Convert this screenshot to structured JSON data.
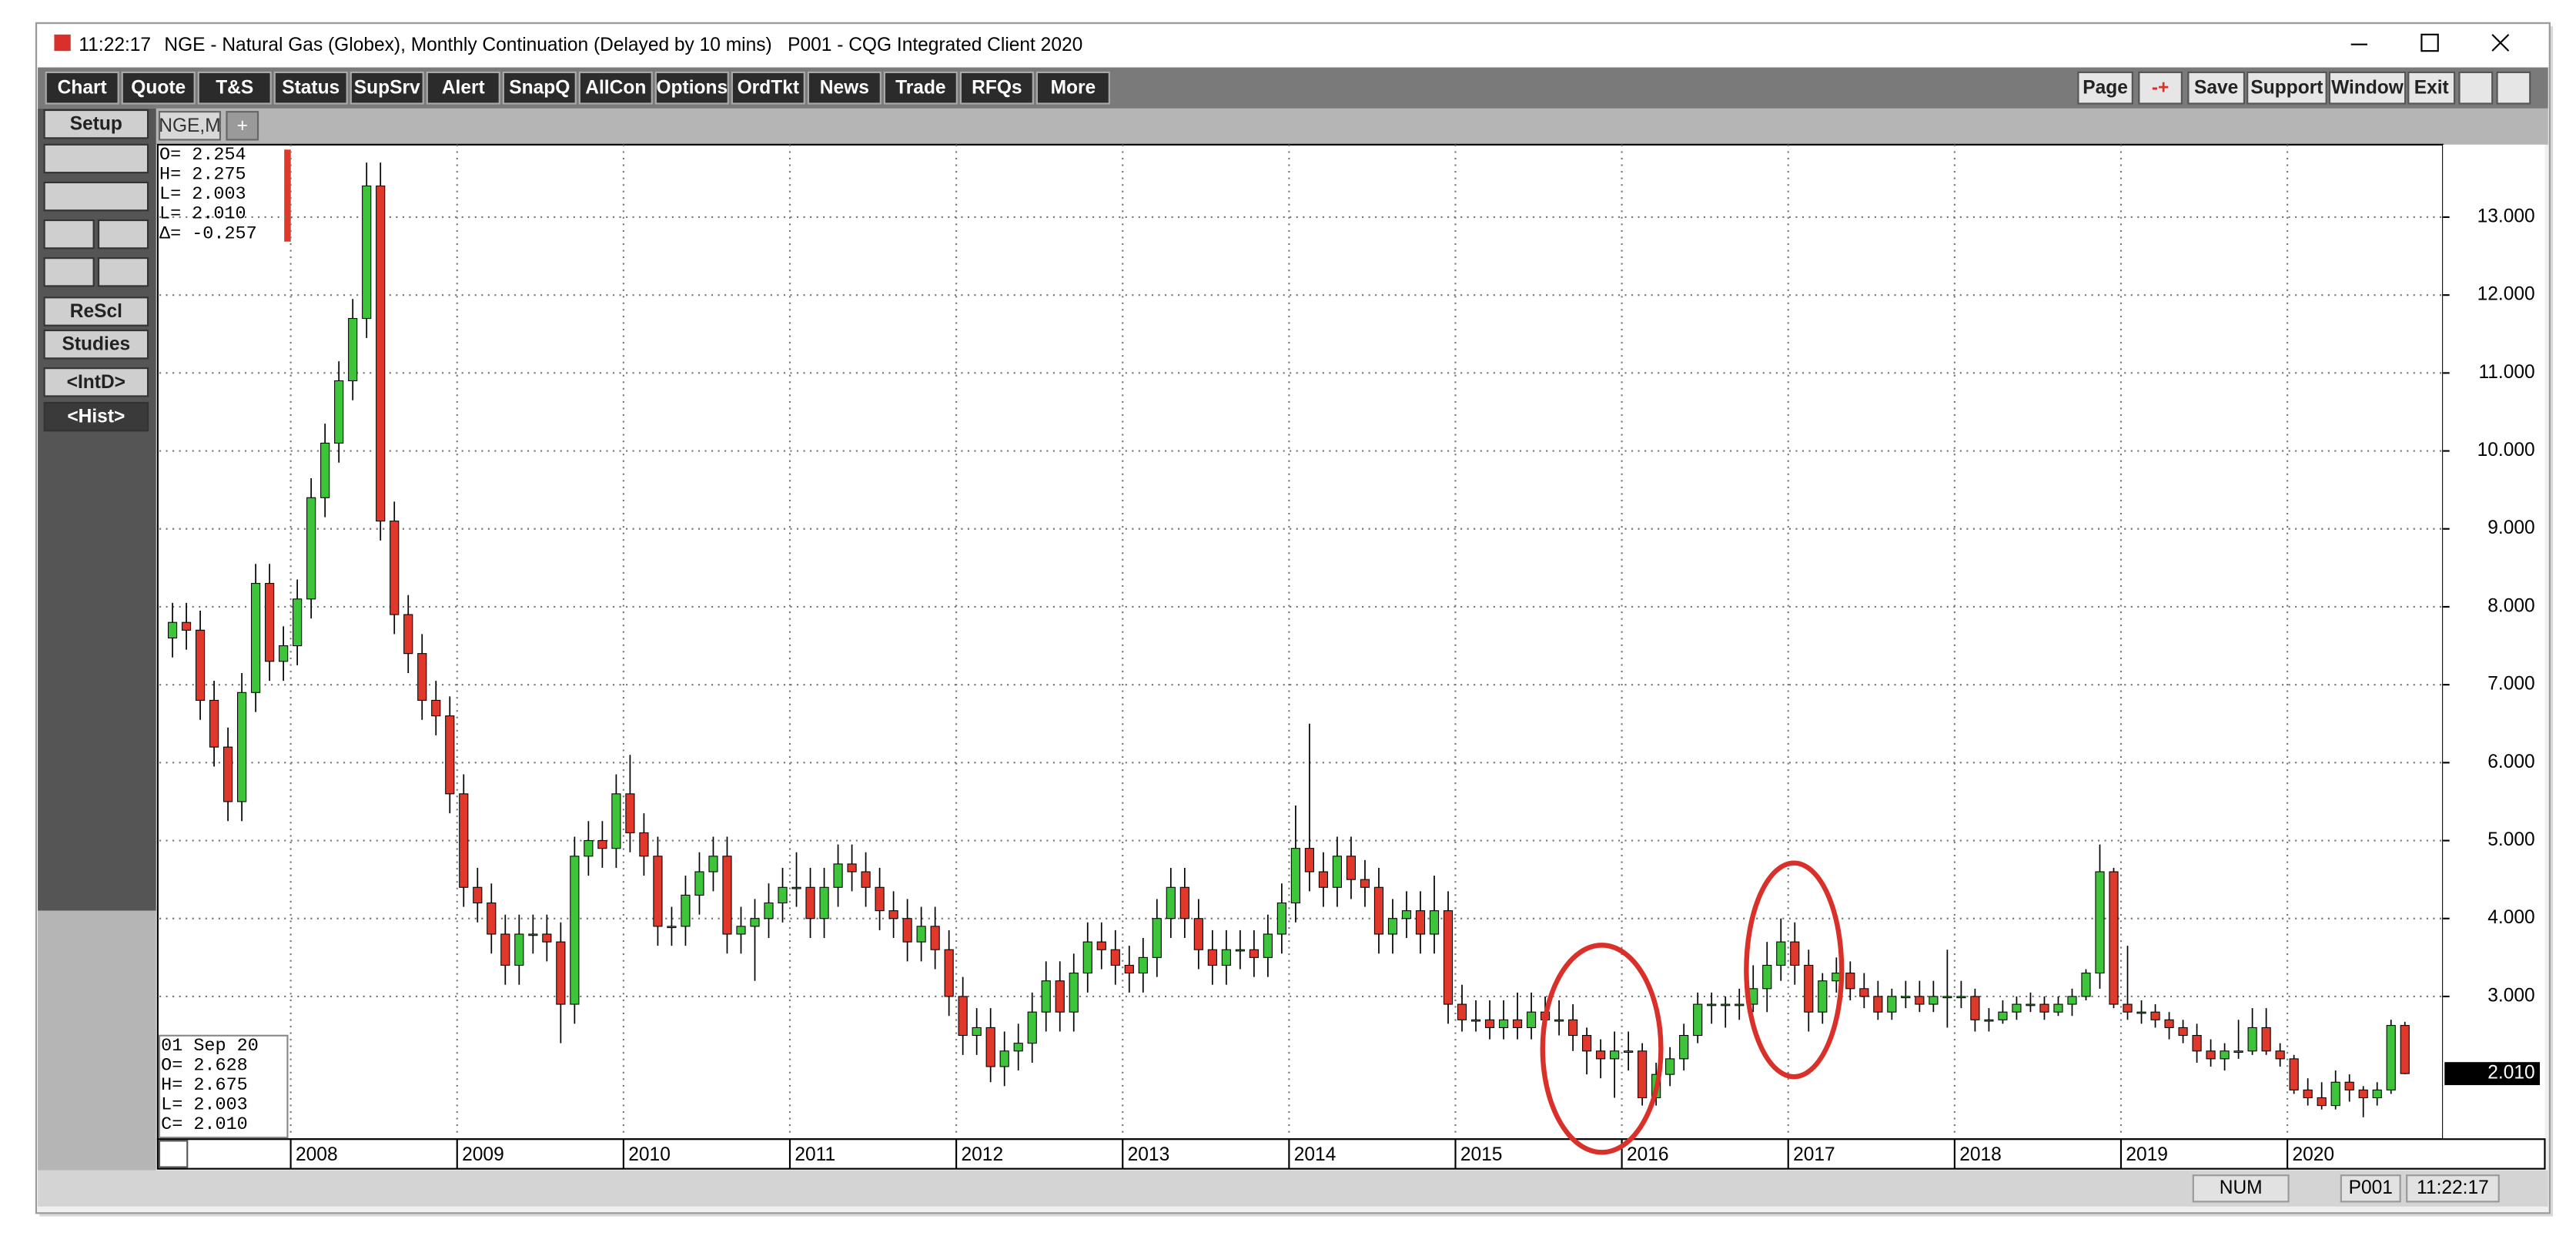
{
  "window": {
    "time": "11:22:17",
    "title": "NGE - Natural Gas (Globex), Monthly Continuation (Delayed by 10 mins)   P001 - CQG Integrated Client 2020"
  },
  "toolbar": {
    "buttons": [
      "Chart",
      "Quote",
      "T&S",
      "Status",
      "SupSrv",
      "Alert",
      "SnapQ",
      "AllCon",
      "Options",
      "OrdTkt",
      "News",
      "Trade",
      "RFQs",
      "More"
    ],
    "right_buttons": [
      "Page",
      "-+",
      "Save",
      "Support",
      "Window",
      "Exit"
    ]
  },
  "tabs": [
    "NGE,M",
    "+"
  ],
  "side_buttons": [
    "Setup",
    "ReScl",
    "Studies",
    "<IntD>",
    "<Hist>"
  ],
  "status_bar": [
    "NUM",
    "P001",
    "11:22:17"
  ],
  "chart_data": {
    "type": "candlestick",
    "x": [
      "2007-04",
      "2007-05",
      "2007-06",
      "2007-07",
      "2007-08",
      "2007-09",
      "2007-10",
      "2007-11",
      "2007-12",
      "2008-01",
      "2008-02",
      "2008-03",
      "2008-04",
      "2008-05",
      "2008-06",
      "2008-07",
      "2008-08",
      "2008-09",
      "2008-10",
      "2008-11",
      "2008-12",
      "2009-01",
      "2009-02",
      "2009-03",
      "2009-04",
      "2009-05",
      "2009-06",
      "2009-07",
      "2009-08",
      "2009-09",
      "2009-10",
      "2009-11",
      "2009-12",
      "2010-01",
      "2010-02",
      "2010-03",
      "2010-04",
      "2010-05",
      "2010-06",
      "2010-07",
      "2010-08",
      "2010-09",
      "2010-10",
      "2010-11",
      "2010-12",
      "2011-01",
      "2011-02",
      "2011-03",
      "2011-04",
      "2011-05",
      "2011-06",
      "2011-07",
      "2011-08",
      "2011-09",
      "2011-10",
      "2011-11",
      "2011-12",
      "2012-01",
      "2012-02",
      "2012-03",
      "2012-04",
      "2012-05",
      "2012-06",
      "2012-07",
      "2012-08",
      "2012-09",
      "2012-10",
      "2012-11",
      "2012-12",
      "2013-01",
      "2013-02",
      "2013-03",
      "2013-04",
      "2013-05",
      "2013-06",
      "2013-07",
      "2013-08",
      "2013-09",
      "2013-10",
      "2013-11",
      "2013-12",
      "2014-01",
      "2014-02",
      "2014-03",
      "2014-04",
      "2014-05",
      "2014-06",
      "2014-07",
      "2014-08",
      "2014-09",
      "2014-10",
      "2014-11",
      "2014-12",
      "2015-01",
      "2015-02",
      "2015-03",
      "2015-04",
      "2015-05",
      "2015-06",
      "2015-07",
      "2015-08",
      "2015-09",
      "2015-10",
      "2015-11",
      "2015-12",
      "2016-01",
      "2016-02",
      "2016-03",
      "2016-04",
      "2016-05",
      "2016-06",
      "2016-07",
      "2016-08",
      "2016-09",
      "2016-10",
      "2016-11",
      "2016-12",
      "2017-01",
      "2017-02",
      "2017-03",
      "2017-04",
      "2017-05",
      "2017-06",
      "2017-07",
      "2017-08",
      "2017-09",
      "2017-10",
      "2017-11",
      "2017-12",
      "2018-01",
      "2018-02",
      "2018-03",
      "2018-04",
      "2018-05",
      "2018-06",
      "2018-07",
      "2018-08",
      "2018-09",
      "2018-10",
      "2018-11",
      "2018-12",
      "2019-01",
      "2019-02",
      "2019-03",
      "2019-04",
      "2019-05",
      "2019-06",
      "2019-07",
      "2019-08",
      "2019-09",
      "2019-10",
      "2019-11",
      "2019-12",
      "2020-01",
      "2020-02",
      "2020-03",
      "2020-04",
      "2020-05",
      "2020-06",
      "2020-07",
      "2020-08",
      "2020-09"
    ],
    "open": [
      7.6,
      7.8,
      7.7,
      6.8,
      6.2,
      5.5,
      6.9,
      8.3,
      7.3,
      7.5,
      8.1,
      9.4,
      10.1,
      10.9,
      11.7,
      13.4,
      9.1,
      7.9,
      7.4,
      6.8,
      6.6,
      5.6,
      4.4,
      4.2,
      3.8,
      3.4,
      3.8,
      3.8,
      3.7,
      2.9,
      4.8,
      5.0,
      4.9,
      5.6,
      5.1,
      4.8,
      3.9,
      3.9,
      4.3,
      4.6,
      4.8,
      3.8,
      3.9,
      4.0,
      4.2,
      4.4,
      4.4,
      4.0,
      4.4,
      4.7,
      4.6,
      4.4,
      4.1,
      4.0,
      3.7,
      3.9,
      3.6,
      3.0,
      2.5,
      2.6,
      2.1,
      2.3,
      2.4,
      2.8,
      3.2,
      2.8,
      3.3,
      3.7,
      3.6,
      3.4,
      3.3,
      3.5,
      4.0,
      4.4,
      4.0,
      3.6,
      3.4,
      3.6,
      3.6,
      3.5,
      3.8,
      4.2,
      4.9,
      4.6,
      4.4,
      4.8,
      4.5,
      4.4,
      3.8,
      4.0,
      4.1,
      3.8,
      4.1,
      2.9,
      2.7,
      2.7,
      2.6,
      2.7,
      2.6,
      2.8,
      2.7,
      2.7,
      2.5,
      2.3,
      2.2,
      2.3,
      2.3,
      1.7,
      2.0,
      2.2,
      2.5,
      2.9,
      2.9,
      2.9,
      2.9,
      3.1,
      3.4,
      3.7,
      3.4,
      2.8,
      3.2,
      3.3,
      3.1,
      3.0,
      2.8,
      3.0,
      3.0,
      2.9,
      3.0,
      3.0,
      3.0,
      2.7,
      2.7,
      2.8,
      2.9,
      2.9,
      2.8,
      2.9,
      3.0,
      3.3,
      4.6,
      2.9,
      2.8,
      2.8,
      2.7,
      2.6,
      2.5,
      2.3,
      2.2,
      2.3,
      2.3,
      2.6,
      2.3,
      2.2,
      1.8,
      1.7,
      1.6,
      1.9,
      1.8,
      1.7,
      1.8,
      2.628
    ],
    "high": [
      8.05,
      8.05,
      7.95,
      7.05,
      6.45,
      7.15,
      8.55,
      8.55,
      7.75,
      8.35,
      9.65,
      10.35,
      11.15,
      11.95,
      13.7,
      13.7,
      9.35,
      8.15,
      7.65,
      7.05,
      6.85,
      5.85,
      4.65,
      4.45,
      4.05,
      4.05,
      4.05,
      4.05,
      3.95,
      5.05,
      5.25,
      5.25,
      5.85,
      6.1,
      5.35,
      5.05,
      4.15,
      4.55,
      4.85,
      5.05,
      5.05,
      4.15,
      4.25,
      4.45,
      4.65,
      4.85,
      4.65,
      4.65,
      4.95,
      4.95,
      4.85,
      4.65,
      4.35,
      4.25,
      4.15,
      4.15,
      3.85,
      3.25,
      2.85,
      2.85,
      2.55,
      2.65,
      3.05,
      3.45,
      3.45,
      3.55,
      3.95,
      3.95,
      3.85,
      3.65,
      3.75,
      4.25,
      4.65,
      4.65,
      4.25,
      3.85,
      3.85,
      3.85,
      3.85,
      4.05,
      4.45,
      5.45,
      6.5,
      4.85,
      5.05,
      5.05,
      4.75,
      4.65,
      4.25,
      4.35,
      4.35,
      4.55,
      4.35,
      3.15,
      2.95,
      2.95,
      2.95,
      3.05,
      3.05,
      3.0,
      2.95,
      2.9,
      2.6,
      2.45,
      2.55,
      2.55,
      2.4,
      2.15,
      2.35,
      2.65,
      3.05,
      3.05,
      3.0,
      3.1,
      3.4,
      3.7,
      4.0,
      3.95,
      3.6,
      3.3,
      3.5,
      3.45,
      3.3,
      3.2,
      3.1,
      3.2,
      3.2,
      3.2,
      3.6,
      3.2,
      3.1,
      2.85,
      2.95,
      3.0,
      3.05,
      3.0,
      3.0,
      3.1,
      3.35,
      4.95,
      4.65,
      3.65,
      2.95,
      2.9,
      2.8,
      2.7,
      2.65,
      2.45,
      2.4,
      2.7,
      2.85,
      2.85,
      2.4,
      2.25,
      1.95,
      1.9,
      2.05,
      2.0,
      1.85,
      1.9,
      2.7,
      2.675
    ],
    "low": [
      7.35,
      7.45,
      6.55,
      5.95,
      5.25,
      5.25,
      6.65,
      7.05,
      7.05,
      7.25,
      7.85,
      9.15,
      9.85,
      10.65,
      11.45,
      8.85,
      7.65,
      7.15,
      6.55,
      6.35,
      5.35,
      4.15,
      3.95,
      3.55,
      3.15,
      3.15,
      3.55,
      3.45,
      2.4,
      2.65,
      4.55,
      4.65,
      4.65,
      4.85,
      4.55,
      3.65,
      3.65,
      3.65,
      4.05,
      4.35,
      3.55,
      3.55,
      3.2,
      3.75,
      3.95,
      4.15,
      3.75,
      3.75,
      4.15,
      4.35,
      4.15,
      3.85,
      3.75,
      3.45,
      3.45,
      3.35,
      2.75,
      2.25,
      2.25,
      1.9,
      1.85,
      2.05,
      2.15,
      2.55,
      2.55,
      2.55,
      3.05,
      3.35,
      3.15,
      3.05,
      3.05,
      3.25,
      3.75,
      3.75,
      3.35,
      3.15,
      3.15,
      3.35,
      3.25,
      3.25,
      3.55,
      3.95,
      4.35,
      4.15,
      4.15,
      4.25,
      4.15,
      3.55,
      3.55,
      3.75,
      3.55,
      3.55,
      2.65,
      2.55,
      2.55,
      2.45,
      2.45,
      2.45,
      2.45,
      2.55,
      2.5,
      2.3,
      2.0,
      1.95,
      1.7,
      2.05,
      1.6,
      1.6,
      1.85,
      2.05,
      2.4,
      2.65,
      2.6,
      2.7,
      2.8,
      2.8,
      3.2,
      3.15,
      2.55,
      2.65,
      3.05,
      2.95,
      2.85,
      2.7,
      2.7,
      2.85,
      2.8,
      2.8,
      2.6,
      2.85,
      2.55,
      2.55,
      2.65,
      2.7,
      2.8,
      2.7,
      2.75,
      2.75,
      2.95,
      3.1,
      2.85,
      2.7,
      2.65,
      2.6,
      2.45,
      2.4,
      2.15,
      2.1,
      2.05,
      2.2,
      2.25,
      2.25,
      2.1,
      1.75,
      1.6,
      1.55,
      1.55,
      1.65,
      1.45,
      1.6,
      1.75,
      2.003
    ],
    "close": [
      7.8,
      7.7,
      6.8,
      6.2,
      5.5,
      6.9,
      8.3,
      7.3,
      7.5,
      8.1,
      9.4,
      10.1,
      10.9,
      11.7,
      13.4,
      9.1,
      7.9,
      7.4,
      6.8,
      6.6,
      5.6,
      4.4,
      4.2,
      3.8,
      3.4,
      3.8,
      3.8,
      3.7,
      2.9,
      4.8,
      5.0,
      4.9,
      5.6,
      5.1,
      4.8,
      3.9,
      3.9,
      4.3,
      4.6,
      4.8,
      3.8,
      3.9,
      4.0,
      4.2,
      4.4,
      4.4,
      4.0,
      4.4,
      4.7,
      4.6,
      4.4,
      4.1,
      4.0,
      3.7,
      3.9,
      3.6,
      3.0,
      2.5,
      2.6,
      2.1,
      2.3,
      2.4,
      2.8,
      3.2,
      2.8,
      3.3,
      3.7,
      3.6,
      3.4,
      3.3,
      3.5,
      4.0,
      4.4,
      4.0,
      3.6,
      3.4,
      3.6,
      3.6,
      3.5,
      3.8,
      4.2,
      4.9,
      4.6,
      4.4,
      4.8,
      4.5,
      4.4,
      3.8,
      4.0,
      4.1,
      3.8,
      4.1,
      2.9,
      2.7,
      2.7,
      2.6,
      2.7,
      2.6,
      2.8,
      2.7,
      2.7,
      2.5,
      2.3,
      2.2,
      2.3,
      2.3,
      1.7,
      2.0,
      2.2,
      2.5,
      2.9,
      2.9,
      2.9,
      2.9,
      3.1,
      3.4,
      3.7,
      3.4,
      2.8,
      3.2,
      3.3,
      3.1,
      3.0,
      2.8,
      3.0,
      3.0,
      2.9,
      3.0,
      3.0,
      3.0,
      2.7,
      2.7,
      2.8,
      2.9,
      2.9,
      2.8,
      2.9,
      3.0,
      3.3,
      4.6,
      2.9,
      2.8,
      2.8,
      2.7,
      2.6,
      2.5,
      2.3,
      2.2,
      2.3,
      2.3,
      2.6,
      2.3,
      2.2,
      1.8,
      1.7,
      1.6,
      1.9,
      1.8,
      1.7,
      1.8,
      2.628,
      2.01
    ],
    "up_color": "#3ec43a",
    "down_color": "#e0392b",
    "ylim": [
      1.19,
      13.93
    ],
    "yticks": [
      {
        "value": 3,
        "label": "3.000"
      },
      {
        "value": 4,
        "label": "4.000"
      },
      {
        "value": 5,
        "label": "5.000"
      },
      {
        "value": 6,
        "label": "6.000"
      },
      {
        "value": 7,
        "label": "7.000"
      },
      {
        "value": 8,
        "label": "8.000"
      },
      {
        "value": 9,
        "label": "9.000"
      },
      {
        "value": 10,
        "label": "10.000"
      },
      {
        "value": 11,
        "label": "11.000"
      },
      {
        "value": 12,
        "label": "12.000"
      },
      {
        "value": 13,
        "label": "13.000"
      }
    ],
    "xticks": [
      "2008",
      "2009",
      "2010",
      "2011",
      "2012",
      "2013",
      "2014",
      "2015",
      "2016",
      "2017",
      "2018",
      "2019",
      "2020"
    ],
    "grid": true,
    "last_price": {
      "value": 2.01,
      "label": "2.010"
    },
    "info_top": [
      "O=   2.254",
      "H=   2.275",
      "L=   2.003",
      "L=   2.010",
      "Δ= -0.257"
    ],
    "info_bottom": [
      "01 Sep 20",
      "O=   2.628",
      "H=   2.675",
      "L=   2.003",
      "C=   2.010"
    ]
  }
}
